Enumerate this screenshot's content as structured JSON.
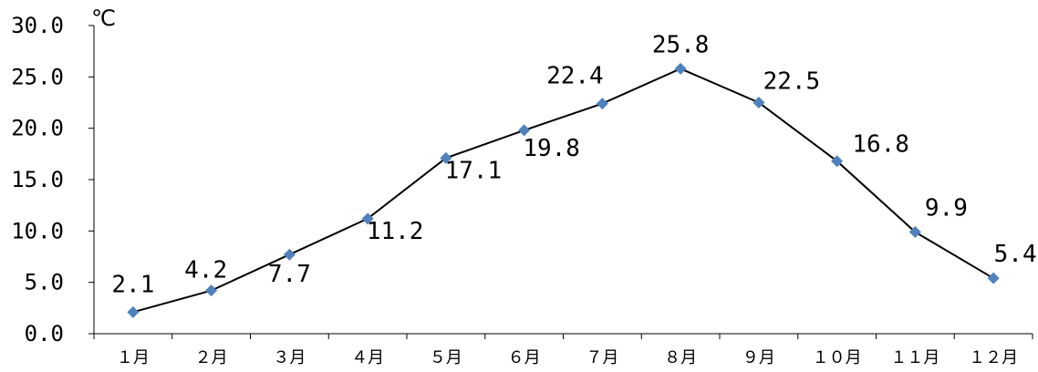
{
  "chart_data": {
    "type": "line",
    "unit": "℃",
    "categories": [
      "１月",
      "２月",
      "３月",
      "４月",
      "５月",
      "６月",
      "７月",
      "８月",
      "９月",
      "１０月",
      "１１月",
      "１２月"
    ],
    "values": [
      2.1,
      4.2,
      7.7,
      11.2,
      17.1,
      19.8,
      22.4,
      25.8,
      22.5,
      16.8,
      9.9,
      5.4
    ],
    "value_labels": [
      "2.1",
      "4.2",
      "7.7",
      "11.2",
      "17.1",
      "19.8",
      "22.4",
      "25.8",
      "22.5",
      "16.8",
      "9.9",
      "5.4"
    ],
    "ylim": [
      0,
      30
    ],
    "yticks": [
      "0.0",
      "5.0",
      "10.0",
      "15.0",
      "20.0",
      "25.0",
      "30.0"
    ],
    "grid": false,
    "colors": {
      "line": "#000000",
      "marker": "#4F81BD",
      "axis": "#000000"
    }
  }
}
